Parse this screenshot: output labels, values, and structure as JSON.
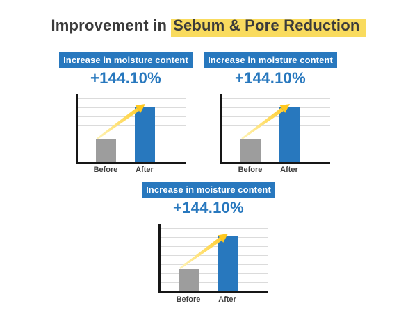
{
  "title": {
    "prefix": "Improvement in",
    "highlight": "Sebum & Pore Reduction"
  },
  "colors": {
    "accent_blue": "#2878be",
    "bar_gray": "#9d9d9d",
    "highlight_yellow": "#f9db5e",
    "arrow_gold": "#ffc81e",
    "title_text": "#3b3b3b"
  },
  "panels": [
    {
      "header": "Increase in moisture content",
      "value": "+144.10%",
      "label_before": "Before",
      "label_after": "After"
    },
    {
      "header": "Increase in moisture content",
      "value": "+144.10%",
      "label_before": "Before",
      "label_after": "After"
    },
    {
      "header": "Increase in moisture content",
      "value": "+144.10%",
      "label_before": "Before",
      "label_after": "After"
    }
  ],
  "chart_data": [
    {
      "type": "bar",
      "title": "Increase in moisture content",
      "categories": [
        "Before",
        "After"
      ],
      "values": [
        1.0,
        2.441
      ],
      "annotation": "+144.10%",
      "ylabel": "",
      "xlabel": "",
      "ylim": [
        0,
        3
      ],
      "grid": true,
      "legend": false,
      "bar_colors": [
        "#9d9d9d",
        "#2878be"
      ],
      "note": "no numeric axis shown; values relative, After = Before +144.10%"
    },
    {
      "type": "bar",
      "title": "Increase in moisture content",
      "categories": [
        "Before",
        "After"
      ],
      "values": [
        1.0,
        2.441
      ],
      "annotation": "+144.10%",
      "ylabel": "",
      "xlabel": "",
      "ylim": [
        0,
        3
      ],
      "grid": true,
      "legend": false,
      "bar_colors": [
        "#9d9d9d",
        "#2878be"
      ],
      "note": "no numeric axis shown; values relative, After = Before +144.10%"
    },
    {
      "type": "bar",
      "title": "Increase in moisture content",
      "categories": [
        "Before",
        "After"
      ],
      "values": [
        1.0,
        2.441
      ],
      "annotation": "+144.10%",
      "ylabel": "",
      "xlabel": "",
      "ylim": [
        0,
        3
      ],
      "grid": true,
      "legend": false,
      "bar_colors": [
        "#9d9d9d",
        "#2878be"
      ],
      "note": "no numeric axis shown; values relative, After = Before +144.10%"
    }
  ]
}
